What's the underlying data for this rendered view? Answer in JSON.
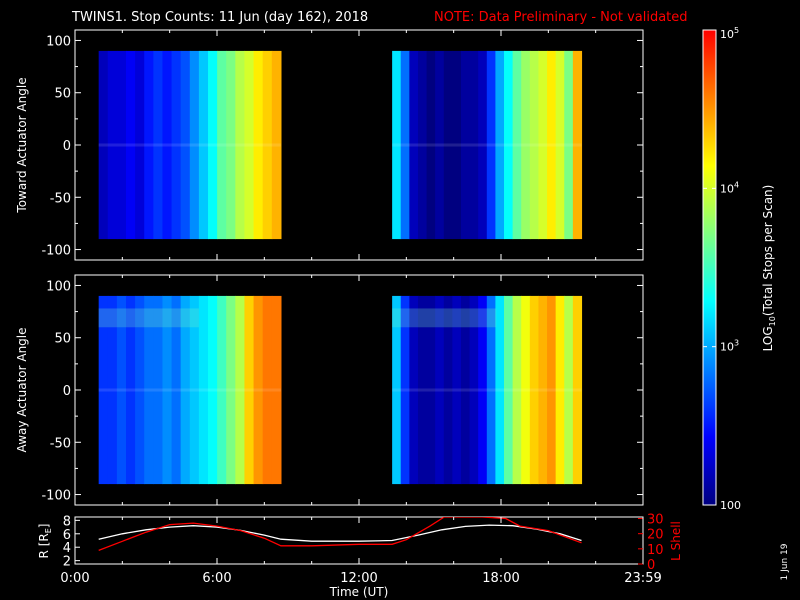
{
  "title": {
    "main": "TWINS1. Stop Counts: 11 Jun (day 162), 2018",
    "note": "NOTE: Data Preliminary - Not validated",
    "note_color": "#ff0000"
  },
  "side_date": "1 Jun 19",
  "colorbar": {
    "label_prefix": "LOG",
    "label_sub": "10",
    "label_suffix": "(Total Stops per Scan)",
    "scale": "log",
    "range": [
      100,
      100000
    ],
    "tick_labels": [
      {
        "value": 100000,
        "base": "10",
        "exp": "5"
      },
      {
        "value": 10000,
        "base": "10",
        "exp": "4"
      },
      {
        "value": 1000,
        "base": "10",
        "exp": "3"
      },
      {
        "value": 100,
        "base": "100",
        "exp": ""
      }
    ],
    "colormap": [
      "#000080",
      "#0000ff",
      "#0080ff",
      "#00ffff",
      "#80ff80",
      "#ffff00",
      "#ff8000",
      "#ff0000"
    ]
  },
  "chart_data": [
    {
      "id": "toward",
      "type": "heatmap",
      "ylabel": "Toward Actuator Angle",
      "ylim": [
        -110,
        110
      ],
      "yticks": [
        -100,
        -50,
        0,
        50,
        100
      ],
      "xlim_hours": [
        0,
        24
      ],
      "y_extent": [
        -90,
        90
      ],
      "segments": [
        {
          "start_hour": 1.0,
          "end_hour": 8.7,
          "column_log_counts": [
            2.2,
            2.3,
            2.3,
            2.4,
            2.3,
            2.5,
            2.6,
            2.5,
            2.6,
            2.7,
            2.9,
            3.1,
            3.3,
            3.6,
            3.7,
            3.9,
            4.0,
            4.2,
            4.3,
            4.4
          ]
        },
        {
          "start_hour": 13.4,
          "end_hour": 21.4,
          "column_log_counts": [
            3.2,
            2.8,
            2.2,
            2.1,
            2.0,
            2.1,
            2.0,
            2.0,
            2.1,
            2.1,
            2.2,
            2.6,
            3.0,
            3.3,
            3.6,
            3.8,
            3.9,
            4.0,
            4.2,
            4.0,
            3.7,
            4.4
          ]
        }
      ]
    },
    {
      "id": "away",
      "type": "heatmap",
      "ylabel": "Away Actuator Angle",
      "ylim": [
        -110,
        110
      ],
      "yticks": [
        -100,
        -50,
        0,
        50,
        100
      ],
      "xlim_hours": [
        0,
        24
      ],
      "y_extent": [
        -90,
        90
      ],
      "segments": [
        {
          "start_hour": 1.0,
          "end_hour": 8.7,
          "column_log_counts": [
            2.6,
            2.6,
            2.7,
            2.6,
            2.7,
            2.8,
            2.8,
            2.9,
            2.8,
            3.0,
            3.1,
            3.2,
            3.3,
            3.5,
            3.7,
            3.9,
            4.3,
            4.5,
            4.6,
            4.6
          ]
        },
        {
          "start_hour": 13.4,
          "end_hour": 21.4,
          "column_log_counts": [
            3.1,
            2.6,
            2.2,
            2.1,
            2.1,
            2.2,
            2.1,
            2.2,
            2.1,
            2.2,
            2.4,
            2.8,
            3.2,
            3.6,
            3.9,
            4.1,
            4.3,
            4.4,
            4.5,
            4.2,
            3.9,
            4.3
          ]
        }
      ]
    },
    {
      "id": "orbit",
      "type": "line",
      "xlabel": "Time (UT)",
      "x_tick_labels": [
        {
          "hour": 0,
          "label": "0:00"
        },
        {
          "hour": 6,
          "label": "6:00"
        },
        {
          "hour": 12,
          "label": "12:00"
        },
        {
          "hour": 18,
          "label": "18:00"
        },
        {
          "hour": 24,
          "label": "23:59"
        }
      ],
      "left_axis": {
        "label_prefix": "R [R",
        "label_sub": "E",
        "label_suffix": "]",
        "ylim": [
          1.5,
          8.5
        ],
        "ticks": [
          2,
          4,
          6,
          8
        ]
      },
      "right_axis": {
        "label": "L Shell",
        "ylim": [
          0,
          31
        ],
        "ticks": [
          0,
          10,
          20,
          30
        ],
        "color": "#ff0000"
      },
      "series": [
        {
          "name": "R",
          "axis": "left",
          "color": "#ffffff",
          "x": [
            1.0,
            2.0,
            3.0,
            4.0,
            5.0,
            6.0,
            7.0,
            8.0,
            8.7,
            10.0,
            12.0,
            13.4,
            14.5,
            15.5,
            16.5,
            17.5,
            18.5,
            19.5,
            20.5,
            21.4
          ],
          "y": [
            5.2,
            6.0,
            6.6,
            7.0,
            7.2,
            7.0,
            6.5,
            5.8,
            5.2,
            4.9,
            4.9,
            5.0,
            5.8,
            6.6,
            7.1,
            7.3,
            7.2,
            6.7,
            6.0,
            5.0
          ]
        },
        {
          "name": "L Shell",
          "axis": "right",
          "color": "#ff0000",
          "x": [
            1.0,
            2.0,
            3.0,
            4.0,
            5.0,
            6.0,
            7.0,
            8.0,
            8.7,
            10.0,
            12.0,
            13.4,
            14.0,
            15.0,
            15.6,
            17.2,
            18.2,
            18.8,
            20.0,
            21.4
          ],
          "y": [
            9,
            15,
            21,
            26,
            27,
            25,
            22,
            17,
            12,
            12,
            13,
            13,
            16,
            25,
            31,
            31,
            30,
            25,
            22,
            14
          ]
        }
      ]
    }
  ]
}
